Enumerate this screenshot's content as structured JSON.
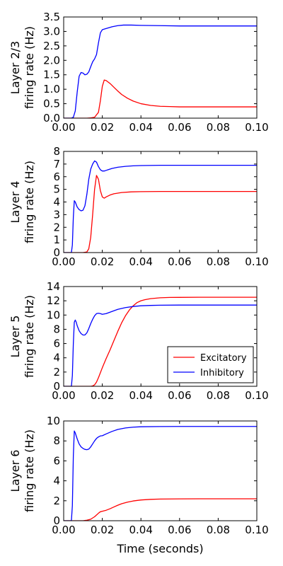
{
  "chart_data": [
    {
      "type": "line",
      "ylabel_lines": [
        "Layer 2/3",
        "firing rate (Hz)"
      ],
      "xlabel": "",
      "xlim": [
        0,
        0.1
      ],
      "ylim": [
        0,
        3.5
      ],
      "xticks": [
        "0.00",
        "0.02",
        "0.04",
        "0.06",
        "0.08",
        "0.10"
      ],
      "yticks": [
        "0.0",
        "0.5",
        "1.0",
        "1.5",
        "2.0",
        "2.5",
        "3.0",
        "3.5"
      ],
      "legend": null,
      "series": [
        {
          "color": "#ff0000",
          "x": [
            0,
            0.012,
            0.014,
            0.016,
            0.018,
            0.019,
            0.02,
            0.021,
            0.022,
            0.024,
            0.026,
            0.028,
            0.03,
            0.033,
            0.036,
            0.04,
            0.045,
            0.05,
            0.055,
            0.06,
            0.07,
            0.08,
            0.09,
            0.1
          ],
          "y": [
            0,
            0,
            0.01,
            0.03,
            0.2,
            0.6,
            1.1,
            1.32,
            1.3,
            1.2,
            1.07,
            0.94,
            0.82,
            0.69,
            0.59,
            0.5,
            0.44,
            0.41,
            0.4,
            0.39,
            0.39,
            0.39,
            0.39,
            0.39
          ]
        },
        {
          "color": "#0000ff",
          "x": [
            0,
            0.004,
            0.005,
            0.006,
            0.007,
            0.008,
            0.009,
            0.01,
            0.011,
            0.012,
            0.013,
            0.014,
            0.015,
            0.016,
            0.017,
            0.018,
            0.019,
            0.02,
            0.021,
            0.023,
            0.025,
            0.028,
            0.031,
            0.035,
            0.04,
            0.05,
            0.06,
            0.08,
            0.1
          ],
          "y": [
            0,
            0,
            0.03,
            0.25,
            0.9,
            1.45,
            1.58,
            1.56,
            1.5,
            1.52,
            1.6,
            1.78,
            1.95,
            2.05,
            2.2,
            2.6,
            2.95,
            3.06,
            3.08,
            3.12,
            3.16,
            3.2,
            3.22,
            3.22,
            3.21,
            3.2,
            3.19,
            3.19,
            3.19
          ]
        }
      ]
    },
    {
      "type": "line",
      "ylabel_lines": [
        "Layer 4",
        "firing rate (Hz)"
      ],
      "xlabel": "",
      "xlim": [
        0,
        0.1
      ],
      "ylim": [
        0,
        8
      ],
      "xticks": [
        "0.00",
        "0.02",
        "0.04",
        "0.06",
        "0.08",
        "0.10"
      ],
      "yticks": [
        "0",
        "1",
        "2",
        "3",
        "4",
        "5",
        "6",
        "7",
        "8"
      ],
      "legend": null,
      "series": [
        {
          "color": "#ff0000",
          "x": [
            0,
            0.01,
            0.012,
            0.013,
            0.014,
            0.015,
            0.016,
            0.017,
            0.018,
            0.019,
            0.02,
            0.021,
            0.022,
            0.024,
            0.026,
            0.03,
            0.035,
            0.04,
            0.05,
            0.06,
            0.08,
            0.1
          ],
          "y": [
            0,
            0,
            0.05,
            0.3,
            1.2,
            3.0,
            5.0,
            6.1,
            5.8,
            4.9,
            4.4,
            4.3,
            4.4,
            4.55,
            4.65,
            4.75,
            4.8,
            4.82,
            4.83,
            4.83,
            4.83,
            4.83
          ]
        },
        {
          "color": "#0000ff",
          "x": [
            0,
            0.004,
            0.0045,
            0.005,
            0.0055,
            0.006,
            0.007,
            0.008,
            0.009,
            0.01,
            0.011,
            0.012,
            0.013,
            0.014,
            0.015,
            0.016,
            0.017,
            0.018,
            0.019,
            0.02,
            0.021,
            0.022,
            0.023,
            0.025,
            0.028,
            0.032,
            0.036,
            0.04,
            0.05,
            0.06,
            0.08,
            0.1
          ],
          "y": [
            0,
            0,
            0.6,
            2.8,
            4.1,
            4.0,
            3.6,
            3.4,
            3.3,
            3.35,
            3.7,
            4.6,
            5.8,
            6.6,
            7.0,
            7.25,
            7.15,
            6.8,
            6.55,
            6.45,
            6.45,
            6.5,
            6.55,
            6.65,
            6.75,
            6.82,
            6.86,
            6.88,
            6.9,
            6.9,
            6.9,
            6.9
          ]
        }
      ]
    },
    {
      "type": "line",
      "ylabel_lines": [
        "Layer 5",
        "firing rate (Hz)"
      ],
      "xlabel": "",
      "xlim": [
        0,
        0.1
      ],
      "ylim": [
        0,
        14
      ],
      "xticks": [
        "0.00",
        "0.02",
        "0.04",
        "0.06",
        "0.08",
        "0.10"
      ],
      "yticks": [
        "0",
        "2",
        "4",
        "6",
        "8",
        "10",
        "12",
        "14"
      ],
      "legend": {
        "position": "lower-right",
        "entries": [
          {
            "label": "Excitatory",
            "color": "#ff0000"
          },
          {
            "label": "Inhibitory",
            "color": "#0000ff"
          }
        ]
      },
      "series": [
        {
          "color": "#ff0000",
          "x": [
            0,
            0.014,
            0.015,
            0.016,
            0.017,
            0.018,
            0.02,
            0.022,
            0.024,
            0.026,
            0.028,
            0.03,
            0.032,
            0.034,
            0.036,
            0.038,
            0.04,
            0.042,
            0.045,
            0.05,
            0.055,
            0.06,
            0.07,
            0.08,
            0.09,
            0.1
          ],
          "y": [
            0,
            0,
            0.05,
            0.2,
            0.6,
            1.2,
            2.6,
            3.9,
            5.1,
            6.4,
            7.7,
            8.9,
            9.9,
            10.7,
            11.3,
            11.75,
            12.0,
            12.15,
            12.3,
            12.42,
            12.47,
            12.48,
            12.5,
            12.5,
            12.5,
            12.5
          ]
        },
        {
          "color": "#0000ff",
          "x": [
            0,
            0.004,
            0.0045,
            0.005,
            0.0055,
            0.006,
            0.0065,
            0.007,
            0.008,
            0.009,
            0.01,
            0.011,
            0.012,
            0.013,
            0.014,
            0.015,
            0.016,
            0.017,
            0.018,
            0.019,
            0.02,
            0.022,
            0.025,
            0.028,
            0.032,
            0.036,
            0.04,
            0.045,
            0.05,
            0.06,
            0.08,
            0.1
          ],
          "y": [
            0,
            0,
            1.5,
            6.0,
            9.0,
            9.3,
            9.0,
            8.5,
            7.8,
            7.4,
            7.2,
            7.2,
            7.5,
            8.1,
            8.8,
            9.4,
            9.9,
            10.2,
            10.25,
            10.2,
            10.1,
            10.2,
            10.5,
            10.8,
            11.05,
            11.2,
            11.3,
            11.35,
            11.38,
            11.4,
            11.4,
            11.4
          ]
        }
      ]
    },
    {
      "type": "line",
      "ylabel_lines": [
        "Layer 6",
        "firing rate (Hz)"
      ],
      "xlabel": "Time (seconds)",
      "xlim": [
        0,
        0.1
      ],
      "ylim": [
        0,
        10
      ],
      "xticks": [
        "0.00",
        "0.02",
        "0.04",
        "0.06",
        "0.08",
        "0.10"
      ],
      "yticks": [
        "0",
        "2",
        "4",
        "6",
        "8",
        "10"
      ],
      "legend": null,
      "series": [
        {
          "color": "#ff0000",
          "x": [
            0,
            0.01,
            0.012,
            0.014,
            0.016,
            0.018,
            0.019,
            0.02,
            0.022,
            0.024,
            0.026,
            0.028,
            0.03,
            0.033,
            0.036,
            0.04,
            0.045,
            0.05,
            0.06,
            0.07,
            0.08,
            0.09,
            0.1
          ],
          "y": [
            0,
            0,
            0.05,
            0.15,
            0.4,
            0.75,
            0.9,
            0.95,
            1.05,
            1.2,
            1.38,
            1.55,
            1.7,
            1.86,
            1.98,
            2.08,
            2.14,
            2.17,
            2.19,
            2.2,
            2.2,
            2.2,
            2.2
          ]
        },
        {
          "color": "#0000ff",
          "x": [
            0,
            0.004,
            0.0045,
            0.005,
            0.0055,
            0.006,
            0.007,
            0.008,
            0.009,
            0.01,
            0.011,
            0.012,
            0.013,
            0.014,
            0.015,
            0.016,
            0.017,
            0.018,
            0.019,
            0.02,
            0.022,
            0.025,
            0.028,
            0.032,
            0.036,
            0.04,
            0.05,
            0.06,
            0.08,
            0.1
          ],
          "y": [
            0,
            0,
            1.5,
            6.5,
            9.0,
            8.8,
            8.2,
            7.7,
            7.4,
            7.25,
            7.15,
            7.12,
            7.18,
            7.4,
            7.7,
            8.0,
            8.25,
            8.4,
            8.5,
            8.52,
            8.7,
            8.95,
            9.15,
            9.3,
            9.38,
            9.42,
            9.44,
            9.45,
            9.45,
            9.45
          ]
        }
      ]
    }
  ]
}
